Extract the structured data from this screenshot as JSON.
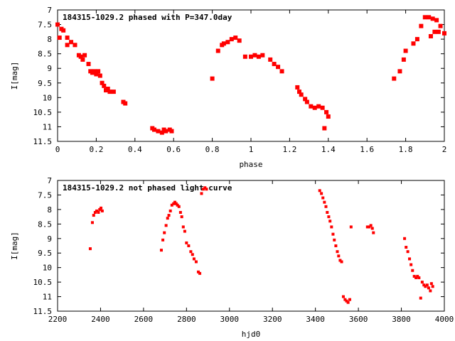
{
  "chart_data": [
    {
      "type": "scatter",
      "title": "184315-1029.2 phased with P=347.0day",
      "xlabel": "phase",
      "ylabel": "I[mag]",
      "xlim": [
        0,
        2
      ],
      "ylim": [
        11.5,
        7
      ],
      "y_inverted": true,
      "xticks": [
        0,
        0.2,
        0.4,
        0.6,
        0.8,
        1,
        1.2,
        1.4,
        1.6,
        1.8,
        2
      ],
      "xtick_labels": [
        "0",
        "0.2",
        "0.4",
        "0.6",
        "0.8",
        "1",
        "1.2",
        "1.4",
        "1.6",
        "1.8",
        "2"
      ],
      "yticks": [
        7,
        7.5,
        8,
        8.5,
        9,
        9.5,
        10,
        10.5,
        11,
        11.5
      ],
      "ytick_labels": [
        "7",
        "7.5",
        "8",
        "8.5",
        "9",
        "9.5",
        "10",
        "10.5",
        "11",
        "11.5"
      ],
      "color": "#ff0000",
      "grid": false,
      "series": [
        {
          "x": [
            0.0,
            0.01,
            0.02,
            0.03,
            0.05,
            0.05,
            0.07,
            0.09,
            0.11,
            0.12,
            0.13,
            0.14,
            0.16,
            0.17,
            0.18,
            0.19,
            0.2,
            0.21,
            0.22,
            0.23,
            0.24,
            0.25,
            0.26,
            0.27,
            0.29,
            0.34,
            0.35,
            0.49,
            0.5,
            0.52,
            0.54,
            0.55,
            0.56,
            0.58,
            0.59,
            0.8,
            0.83,
            0.85,
            0.86,
            0.88,
            0.9,
            0.92,
            0.94,
            0.97,
            1.0,
            1.02,
            1.04,
            1.06,
            1.1,
            1.12,
            1.14,
            1.16,
            1.24,
            1.25,
            1.26,
            1.28,
            1.29,
            1.31,
            1.33,
            1.35,
            1.37,
            1.38,
            1.39,
            1.4,
            1.74,
            1.77,
            1.79,
            1.8,
            1.84,
            1.86,
            1.88,
            1.9,
            1.92,
            1.94,
            1.96,
            1.98,
            2.0,
            1.93,
            1.95,
            1.97
          ],
          "y": [
            7.5,
            7.95,
            7.65,
            7.7,
            7.95,
            8.2,
            8.1,
            8.2,
            8.55,
            8.6,
            8.7,
            8.55,
            8.85,
            9.1,
            9.15,
            9.1,
            9.2,
            9.1,
            9.25,
            9.5,
            9.6,
            9.75,
            9.7,
            9.8,
            9.8,
            10.15,
            10.2,
            11.05,
            11.1,
            11.15,
            11.2,
            11.1,
            11.15,
            11.1,
            11.15,
            9.35,
            8.4,
            8.2,
            8.15,
            8.1,
            8.0,
            7.95,
            8.05,
            8.6,
            8.6,
            8.55,
            8.6,
            8.55,
            8.7,
            8.85,
            8.95,
            9.1,
            9.65,
            9.8,
            9.9,
            10.05,
            10.15,
            10.3,
            10.35,
            10.3,
            10.35,
            11.05,
            10.5,
            10.65,
            9.35,
            9.1,
            8.7,
            8.4,
            8.15,
            8.0,
            7.55,
            7.25,
            7.25,
            7.3,
            7.35,
            7.55,
            7.8,
            7.9,
            7.75,
            7.75
          ]
        }
      ]
    },
    {
      "type": "scatter",
      "title": "184315-1029.2 not phased light curve",
      "xlabel": "hjd0",
      "ylabel": "I[mag]",
      "xlim": [
        2200,
        4000
      ],
      "ylim": [
        11.5,
        7
      ],
      "y_inverted": true,
      "xticks": [
        2200,
        2400,
        2600,
        2800,
        3000,
        3200,
        3400,
        3600,
        3800,
        4000
      ],
      "xtick_labels": [
        "2200",
        "2400",
        "2600",
        "2800",
        "3000",
        "3200",
        "3400",
        "3600",
        "3800",
        "4000"
      ],
      "yticks": [
        7,
        7.5,
        8,
        8.5,
        9,
        9.5,
        10,
        10.5,
        11,
        11.5
      ],
      "ytick_labels": [
        "7",
        "7.5",
        "8",
        "8.5",
        "9",
        "9.5",
        "10",
        "10.5",
        "11",
        "11.5"
      ],
      "color": "#ff0000",
      "grid": false,
      "series": [
        {
          "x": [
            2352,
            2362,
            2368,
            2375,
            2382,
            2390,
            2396,
            2402,
            2408,
            2683,
            2690,
            2697,
            2705,
            2712,
            2718,
            2725,
            2732,
            2740,
            2746,
            2752,
            2758,
            2765,
            2772,
            2778,
            2785,
            2792,
            2800,
            2810,
            2820,
            2828,
            2835,
            2845,
            2855,
            2862,
            2870,
            2878,
            2886,
            2893,
            3420,
            3428,
            3435,
            3442,
            3449,
            3455,
            3462,
            3468,
            3475,
            3482,
            3488,
            3495,
            3502,
            3508,
            3515,
            3522,
            3530,
            3538,
            3545,
            3552,
            3560,
            3566,
            3642,
            3650,
            3658,
            3665,
            3670,
            3815,
            3822,
            3830,
            3838,
            3845,
            3852,
            3860,
            3868,
            3875,
            3882,
            3890,
            3897,
            3905,
            3912,
            3920,
            3927,
            3935,
            3940,
            3946
          ],
          "y": [
            9.35,
            8.45,
            8.2,
            8.1,
            8.05,
            8.1,
            8.0,
            7.95,
            8.05,
            9.4,
            9.05,
            8.8,
            8.55,
            8.3,
            8.2,
            8.05,
            7.85,
            7.8,
            7.75,
            7.8,
            7.85,
            7.9,
            8.1,
            8.25,
            8.6,
            8.75,
            9.15,
            9.25,
            9.45,
            9.55,
            9.7,
            9.8,
            10.15,
            10.2,
            7.45,
            7.3,
            7.25,
            7.3,
            7.35,
            7.45,
            7.6,
            7.75,
            7.9,
            8.1,
            8.25,
            8.4,
            8.6,
            8.85,
            9.05,
            9.25,
            9.45,
            9.6,
            9.75,
            9.8,
            11.0,
            11.1,
            11.15,
            11.2,
            11.1,
            8.6,
            8.6,
            8.6,
            8.55,
            8.65,
            8.8,
            9.0,
            9.3,
            9.45,
            9.7,
            9.9,
            10.1,
            10.3,
            10.35,
            10.3,
            10.35,
            11.05,
            10.5,
            10.6,
            10.65,
            10.6,
            10.7,
            10.8,
            10.55,
            10.65
          ],
          "series_note": ""
        }
      ]
    }
  ]
}
